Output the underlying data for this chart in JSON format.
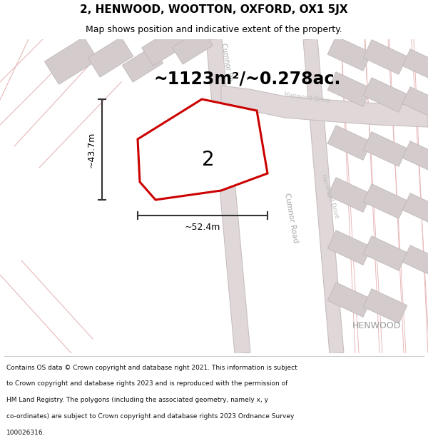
{
  "title": "2, HENWOOD, WOOTTON, OXFORD, OX1 5JX",
  "subtitle": "Map shows position and indicative extent of the property.",
  "area_text": "~1123m²/~0.278ac.",
  "width_label": "~52.4m",
  "height_label": "~43.7m",
  "plot_number": "2",
  "henwood_label": "HENWOOD",
  "footer_lines": [
    "Contains OS data © Crown copyright and database right 2021. This information is subject",
    "to Crown copyright and database rights 2023 and is reproduced with the permission of",
    "HM Land Registry. The polygons (including the associated geometry, namely x, y",
    "co-ordinates) are subject to Crown copyright and database rights 2023 Ordnance Survey",
    "100026316."
  ],
  "map_bg": "#f2eded",
  "road_fill": "#e0d8d8",
  "road_edge": "#c8bebe",
  "plot_outline_color": "#cc0000",
  "plot_fill_color": "#ffffff",
  "street_line_color": "#e8b8b8",
  "building_fill": "#d4cccc",
  "building_edge": "#c0b8b8",
  "dim_line_color": "#333333",
  "text_color": "#000000",
  "footer_color": "#111111",
  "road_label_color": "#aaaaaa",
  "henwood_label_color": "#999999",
  "title_fontsize": 11,
  "subtitle_fontsize": 9,
  "area_fontsize": 17,
  "dim_fontsize": 9,
  "plot_num_fontsize": 20,
  "road_label_fontsize": 7,
  "henwood_fontsize": 9,
  "footer_fontsize": 6.5
}
